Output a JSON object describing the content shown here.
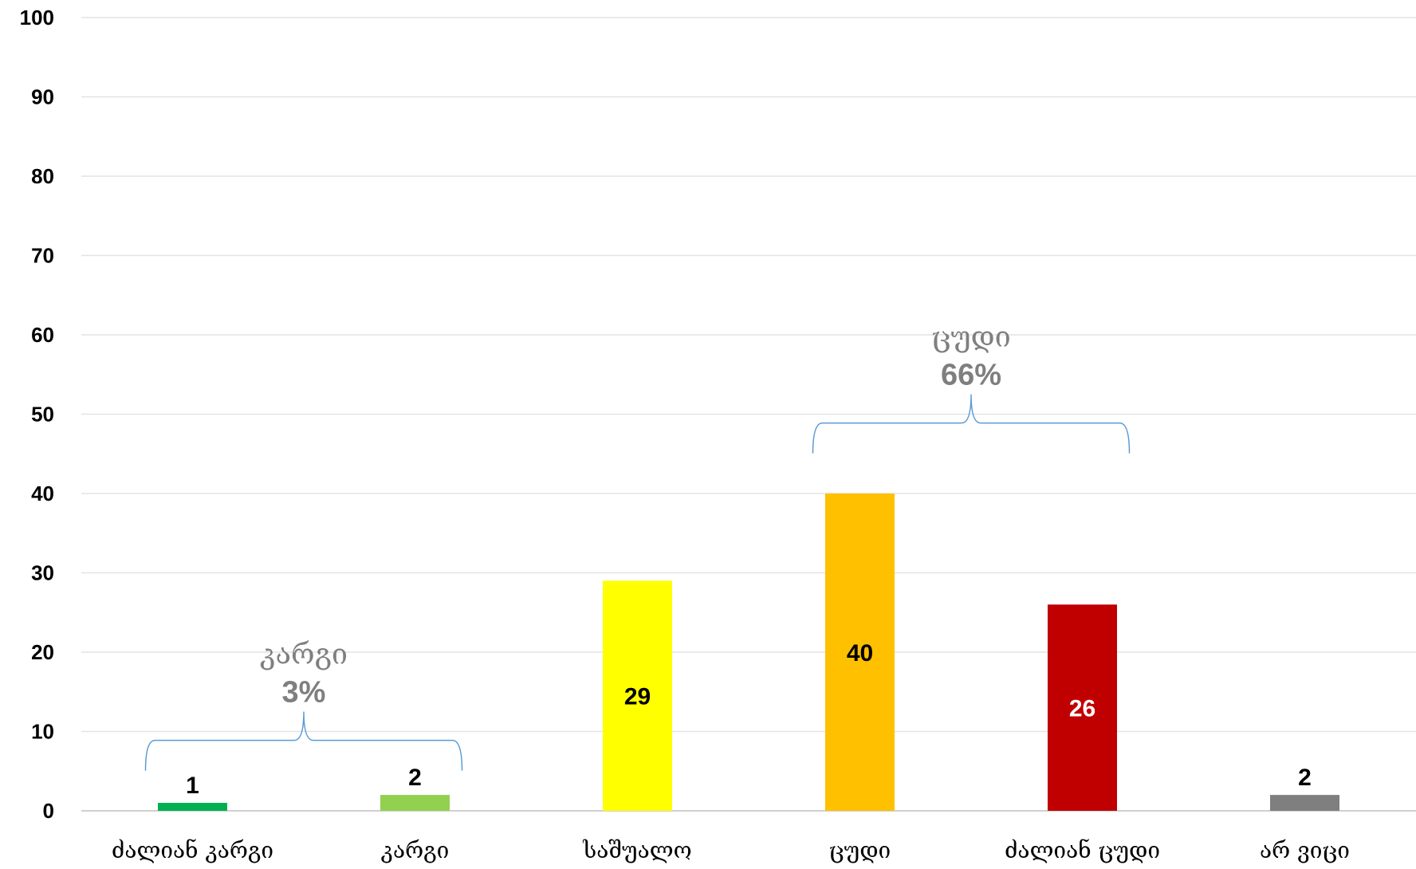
{
  "chart_data": {
    "type": "bar",
    "categories": [
      "ძალიან კარგი",
      "კარგი",
      "საშუალო",
      "ცუდი",
      "ძალიან ცუდი",
      "არ ვიცი"
    ],
    "values": [
      1,
      2,
      29,
      40,
      26,
      2
    ],
    "value_labels": [
      "1",
      "2",
      "29",
      "40",
      "26",
      "2"
    ],
    "colors": [
      "#00b050",
      "#92d050",
      "#ffff00",
      "#ffc000",
      "#c00000",
      "#7f7f7f"
    ],
    "label_colors": [
      "#000000",
      "#000000",
      "#000000",
      "#000000",
      "#ffffff",
      "#000000"
    ],
    "ylim": [
      0,
      100
    ],
    "yticks": [
      "0",
      "10",
      "20",
      "30",
      "40",
      "50",
      "60",
      "70",
      "80",
      "90",
      "100"
    ],
    "grid": true,
    "annotations": [
      {
        "label": "კარგი",
        "percent": "3%",
        "spans": [
          "ძალიან კარგი",
          "კარგი"
        ]
      },
      {
        "label": "ცუდი",
        "percent": "66%",
        "spans": [
          "ცუდი",
          "ძალიან ცუდი"
        ]
      }
    ],
    "bracket_color": "#5b9bd5"
  }
}
